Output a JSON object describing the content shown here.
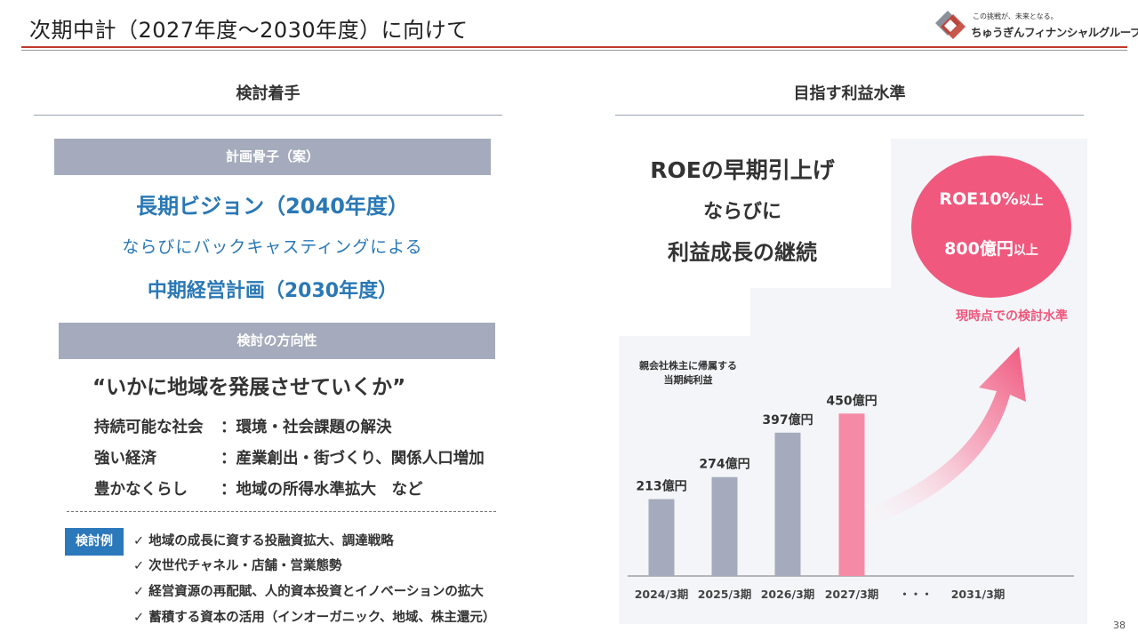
{
  "header": {
    "title": "次期中計（2027年度～2030年度）に向けて",
    "logo_tagline": "この挑戦が、未来となる。",
    "logo_name": "ちゅうぎんフィナンシャルグループ",
    "page_number": "38"
  },
  "left": {
    "section_title": "検討着手",
    "framework_label": "計画骨子（案）",
    "vision": "長期ビジョン（2040年度）",
    "connector": "ならびにバックキャスティングによる",
    "midterm": "中期経営計画（2030年度）",
    "direction_label": "検討の方向性",
    "quote": "“いかに地域を発展させていくか”",
    "directions": [
      {
        "label": "持続可能な社会",
        "value": "：環境・社会課題の解決"
      },
      {
        "label": "強い経済",
        "value": "：産業創出・街づくり、関係人口増加"
      },
      {
        "label": "豊かなくらし",
        "value": "：地域の所得水準拡大　など"
      }
    ],
    "examples_badge": "検討例",
    "examples": [
      "✓ 地域の成長に資する投融資拡大、調達戦略",
      "✓ 次世代チャネル・店舗・営業態勢",
      "✓ 経営資源の再配賦、人的資本投資とイノベーションの拡大",
      "✓ 蓄積する資本の活用（インオーガニック、地域、株主還元）"
    ]
  },
  "right": {
    "section_title": "目指す利益水準",
    "headline": [
      "ROEの早期引上げ",
      "ならびに",
      "利益成長の継続"
    ],
    "target": {
      "roe_value": "ROE10%",
      "roe_suffix": "以上",
      "profit_value": "800億円",
      "profit_suffix": "以上",
      "caption": "現時点での検討水準"
    }
  },
  "chart_data": {
    "type": "bar",
    "ylabel": "親会社株主に帰属する当期純利益",
    "ylabel_lines": [
      "親会社株主に帰属する",
      "当期純利益"
    ],
    "categories": [
      "2024/3期",
      "2025/3期",
      "2026/3期",
      "2027/3期",
      "・・・",
      "2031/3期"
    ],
    "values": [
      213,
      274,
      397,
      450,
      null,
      null
    ],
    "data_labels": [
      "213億円",
      "274億円",
      "397億円",
      "450億円",
      "",
      ""
    ],
    "unit": "億円",
    "ylim": [
      0,
      660
    ],
    "colors": {
      "actual": "#a5abbc",
      "plan": "#f58aa7",
      "arrow": "#f0587e",
      "target_circle": "#f0587e"
    },
    "highlight_index": 3
  }
}
